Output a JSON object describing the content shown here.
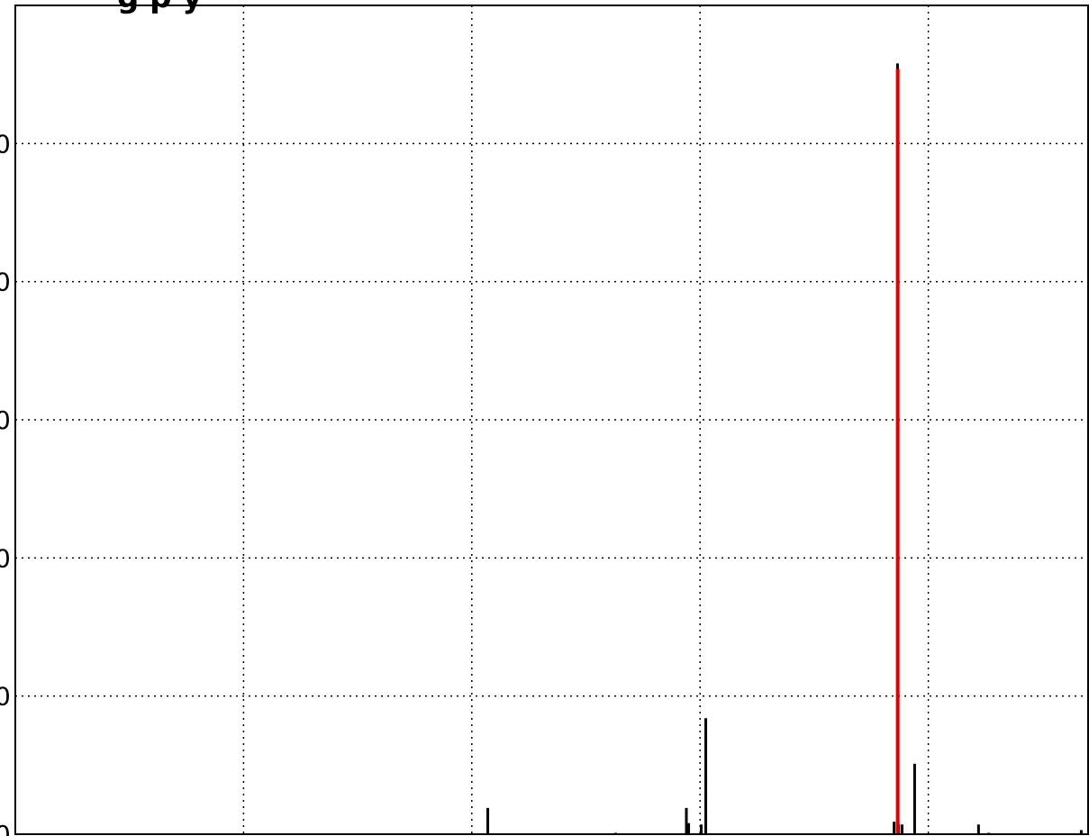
{
  "chart_data": {
    "type": "bar",
    "title": "",
    "visible_title_fragment": "g p y",
    "xlabel": "",
    "ylabel": "",
    "xlim": [
      0,
      4700
    ],
    "ylim": [
      0,
      300
    ],
    "grid": true,
    "grid_style": "dotted",
    "x_gridlines": [
      1000,
      2000,
      3000,
      4000
    ],
    "y_gridlines": [
      50,
      100,
      150,
      200,
      250
    ],
    "y_tick_label_fragments": [
      "0",
      "0",
      "0",
      "0",
      "0",
      "0"
    ],
    "series": [
      {
        "color": "#000000",
        "x": [
          2070,
          2630,
          2940,
          2950,
          3005,
          3025,
          3040,
          3850,
          3865,
          3870,
          3885,
          3940,
          4220,
          4265,
          4670
        ],
        "values": [
          9.5,
          0.5,
          9.5,
          4,
          3.5,
          42,
          0.3,
          4.5,
          279,
          3.5,
          3.5,
          25.5,
          3.5,
          0.5,
          1.5
        ]
      },
      {
        "color": "#e00000",
        "x": [
          3866
        ],
        "values": [
          277
        ]
      }
    ]
  }
}
